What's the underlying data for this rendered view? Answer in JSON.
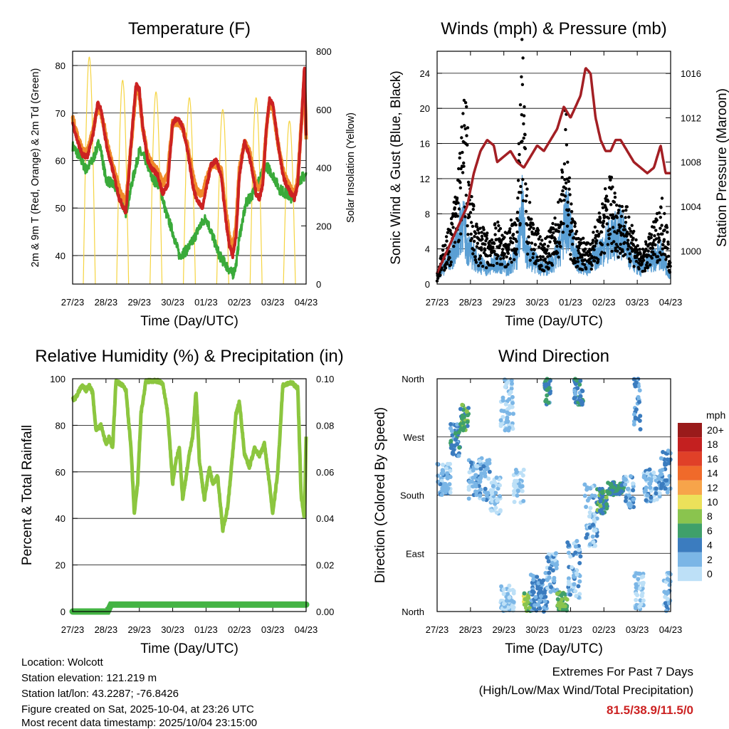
{
  "colors": {
    "temp_red": "#cc2222",
    "temp_orange": "#f08a2a",
    "dew_green": "#3aaa3a",
    "solar_yellow": "#f5d442",
    "wind_blue": "#5a9fd4",
    "gust_black": "#000000",
    "pressure_maroon": "#a31f24",
    "rh_green": "#8cc63f",
    "rain_green": "#44b444",
    "extremes_red": "#cc2222"
  },
  "chart_data": [
    {
      "id": "temperature",
      "type": "line",
      "title": "Temperature (F)",
      "xlabel": "Time (Day/UTC)",
      "ylabel": "2m & 9m T (Red, Orange) & 2m Td (Green)",
      "ylabel_right": "Solar Insolation (Yellow)",
      "x_ticks": [
        "27/23",
        "28/23",
        "29/23",
        "30/23",
        "01/23",
        "02/23",
        "03/23",
        "04/23"
      ],
      "xlim": [
        0,
        7
      ],
      "ylim": [
        34,
        83
      ],
      "y_ticks": [
        40,
        50,
        60,
        70,
        80
      ],
      "ylim_right": [
        0,
        800
      ],
      "y_ticks_right": [
        0,
        200,
        400,
        600,
        800
      ],
      "series": [
        {
          "name": "2m T",
          "color": "#cc2222",
          "x": [
            0,
            0.15,
            0.3,
            0.45,
            0.6,
            0.75,
            0.85,
            0.95,
            1.05,
            1.2,
            1.4,
            1.6,
            1.8,
            1.9,
            2.0,
            2.1,
            2.25,
            2.4,
            2.55,
            2.7,
            2.85,
            3.0,
            3.15,
            3.3,
            3.45,
            3.6,
            3.7,
            3.8,
            3.9,
            4.0,
            4.15,
            4.3,
            4.45,
            4.6,
            4.7,
            4.8,
            4.9,
            5.0,
            5.15,
            5.3,
            5.4,
            5.5,
            5.6,
            5.7,
            5.8,
            5.9,
            6.0,
            6.15,
            6.3,
            6.4,
            6.55,
            6.65,
            6.75,
            6.85,
            6.95,
            7.0
          ],
          "y": [
            68,
            64,
            61,
            61,
            65,
            72,
            71,
            66,
            62,
            58,
            52,
            49,
            68,
            76,
            75,
            67,
            60,
            58,
            57,
            53,
            55,
            68,
            69,
            67,
            62,
            55,
            52,
            51,
            50,
            54,
            59,
            60,
            57,
            47,
            42,
            40,
            44,
            57,
            64,
            61,
            57,
            53,
            52,
            55,
            66,
            73,
            72,
            64,
            57,
            55,
            53,
            52,
            55,
            67,
            80,
            65
          ]
        },
        {
          "name": "9m T",
          "color": "#f08a2a",
          "x": [
            0,
            0.15,
            0.3,
            0.45,
            0.6,
            0.75,
            0.85,
            0.95,
            1.05,
            1.2,
            1.4,
            1.6,
            1.8,
            1.9,
            2.0,
            2.1,
            2.25,
            2.4,
            2.55,
            2.7,
            2.85,
            3.0,
            3.15,
            3.3,
            3.45,
            3.6,
            3.7,
            3.8,
            3.9,
            4.0,
            4.15,
            4.3,
            4.45,
            4.6,
            4.7,
            4.8,
            4.9,
            5.0,
            5.15,
            5.3,
            5.4,
            5.5,
            5.6,
            5.7,
            5.8,
            5.9,
            6.0,
            6.15,
            6.3,
            6.4,
            6.55,
            6.65,
            6.75,
            6.85,
            6.95,
            7.0
          ],
          "y": [
            69,
            65,
            62,
            62,
            66,
            71,
            70,
            67,
            63,
            59,
            54,
            51,
            67,
            75,
            74,
            67,
            61,
            59,
            58,
            55,
            57,
            68,
            68,
            67,
            63,
            57,
            54,
            53,
            53,
            56,
            59,
            59,
            58,
            49,
            44,
            42,
            46,
            58,
            64,
            62,
            58,
            55,
            54,
            56,
            66,
            72,
            71,
            64,
            58,
            56,
            54,
            53,
            56,
            67,
            78,
            65
          ]
        },
        {
          "name": "2m Td",
          "color": "#3aaa3a",
          "x": [
            0,
            0.2,
            0.4,
            0.6,
            0.8,
            1.0,
            1.2,
            1.4,
            1.6,
            1.8,
            2.0,
            2.2,
            2.4,
            2.6,
            2.8,
            3.0,
            3.2,
            3.4,
            3.6,
            3.8,
            4.0,
            4.2,
            4.4,
            4.6,
            4.8,
            4.9,
            5.0,
            5.2,
            5.4,
            5.6,
            5.8,
            6.0,
            6.2,
            6.4,
            6.6,
            6.8,
            7.0
          ],
          "y": [
            63,
            61,
            58,
            60,
            64,
            56,
            55,
            53,
            49,
            56,
            62,
            60,
            56,
            55,
            49,
            45,
            40,
            41,
            43,
            46,
            48,
            44,
            40,
            38,
            36,
            38,
            44,
            51,
            53,
            56,
            59,
            57,
            54,
            53,
            52,
            56,
            57
          ]
        }
      ],
      "solar": {
        "name": "Solar Insolation",
        "color": "#f5d442",
        "peaks": [
          {
            "day": 0.5,
            "value": 780
          },
          {
            "day": 1.5,
            "value": 700
          },
          {
            "day": 2.5,
            "value": 660
          },
          {
            "day": 3.5,
            "value": 640
          },
          {
            "day": 4.5,
            "value": 600
          },
          {
            "day": 5.5,
            "value": 640
          },
          {
            "day": 6.5,
            "value": 560
          }
        ]
      }
    },
    {
      "id": "winds",
      "type": "line",
      "title": "Winds (mph) & Pressure (mb)",
      "xlabel": "Time (Day/UTC)",
      "ylabel": "Sonic Wind & Gust (Blue, Black)",
      "ylabel_right": "Station Pressure (Maroon)",
      "x_ticks": [
        "27/23",
        "28/23",
        "29/23",
        "30/23",
        "01/23",
        "02/23",
        "03/23",
        "04/23"
      ],
      "xlim": [
        0,
        7
      ],
      "ylim": [
        0,
        26.5
      ],
      "y_ticks": [
        0,
        4,
        8,
        12,
        16,
        20,
        24
      ],
      "ylim_right": [
        997,
        1018
      ],
      "y_ticks_right": [
        1000,
        1004,
        1008,
        1012,
        1016
      ],
      "series": [
        {
          "name": "Wind",
          "color": "#5a9fd4",
          "x": [
            0,
            0.3,
            0.6,
            0.75,
            0.9,
            1.2,
            1.5,
            1.8,
            2.1,
            2.4,
            2.55,
            2.7,
            2.9,
            3.2,
            3.5,
            3.7,
            3.9,
            4.2,
            4.5,
            4.8,
            5.0,
            5.2,
            5.5,
            5.8,
            6.1,
            6.4,
            6.7,
            7.0
          ],
          "y": [
            1,
            3,
            5,
            9,
            5,
            3,
            2,
            3,
            2,
            4,
            10,
            4,
            3,
            2,
            3,
            5,
            9,
            3,
            2,
            4,
            5,
            6,
            7,
            4,
            2,
            3,
            4,
            1
          ]
        },
        {
          "name": "Gust",
          "color": "#000000",
          "x": [
            0,
            0.2,
            0.4,
            0.55,
            0.7,
            0.85,
            1.0,
            1.2,
            1.5,
            1.8,
            2.1,
            2.4,
            2.55,
            2.7,
            2.9,
            3.2,
            3.5,
            3.7,
            3.85,
            4.0,
            4.2,
            4.5,
            4.8,
            5.0,
            5.2,
            5.5,
            5.8,
            6.1,
            6.4,
            6.6,
            6.8,
            7.0
          ],
          "y": [
            1,
            4,
            6,
            9,
            14,
            20,
            9,
            6,
            5,
            6,
            5,
            8,
            24,
            9,
            6,
            4,
            6,
            9,
            18,
            8,
            5,
            4,
            6,
            9,
            11,
            8,
            7,
            3,
            5,
            7,
            9,
            2
          ]
        },
        {
          "name": "Pressure",
          "color": "#a31f24",
          "x": [
            0,
            0.3,
            0.6,
            0.9,
            1.1,
            1.3,
            1.5,
            1.7,
            1.8,
            2.0,
            2.2,
            2.4,
            2.6,
            2.8,
            3.0,
            3.2,
            3.4,
            3.6,
            3.8,
            4.0,
            4.15,
            4.3,
            4.45,
            4.6,
            4.75,
            4.9,
            5.05,
            5.2,
            5.35,
            5.5,
            5.7,
            5.9,
            6.1,
            6.3,
            6.5,
            6.7,
            6.85,
            7.0
          ],
          "y": [
            998,
            1000,
            1002,
            1004,
            1007,
            1009,
            1010,
            1009.5,
            1008,
            1008.5,
            1009,
            1008,
            1007.5,
            1008.5,
            1009.5,
            1009,
            1010,
            1011,
            1013,
            1012,
            1013,
            1014,
            1016.5,
            1016,
            1012,
            1010,
            1009,
            1009,
            1010,
            1010,
            1009,
            1008,
            1007.5,
            1007,
            1007.5,
            1009.5,
            1007,
            1007
          ]
        }
      ]
    },
    {
      "id": "humidity",
      "type": "line",
      "title": "Relative Humidity (%) & Precipitation (in)",
      "xlabel": "Time (Day/UTC)",
      "ylabel": "Percent & Total Rainfall",
      "x_ticks": [
        "27/23",
        "28/23",
        "29/23",
        "30/23",
        "01/23",
        "02/23",
        "03/23",
        "04/23"
      ],
      "xlim": [
        0,
        7
      ],
      "ylim": [
        0,
        100
      ],
      "y_ticks": [
        0,
        20,
        40,
        60,
        80,
        100
      ],
      "ylim_right": [
        0,
        0.1
      ],
      "y_ticks_right": [
        "0.00",
        "0.02",
        "0.04",
        "0.06",
        "0.08",
        "0.10"
      ],
      "series": [
        {
          "name": "RH",
          "color": "#8cc63f",
          "x": [
            0,
            0.1,
            0.2,
            0.3,
            0.4,
            0.5,
            0.6,
            0.7,
            0.85,
            1.0,
            1.1,
            1.2,
            1.3,
            1.4,
            1.5,
            1.6,
            1.75,
            1.85,
            1.95,
            2.05,
            2.2,
            2.4,
            2.55,
            2.7,
            2.85,
            3.0,
            3.1,
            3.2,
            3.3,
            3.5,
            3.6,
            3.7,
            3.8,
            3.95,
            4.1,
            4.2,
            4.35,
            4.5,
            4.65,
            4.8,
            4.9,
            5.0,
            5.15,
            5.3,
            5.45,
            5.6,
            5.75,
            5.9,
            6.0,
            6.15,
            6.3,
            6.45,
            6.6,
            6.75,
            6.85,
            6.95,
            7.0
          ],
          "y": [
            91,
            92,
            95,
            97,
            95,
            97,
            94,
            78,
            80,
            72,
            75,
            70,
            99,
            98,
            97,
            95,
            70,
            42,
            55,
            85,
            99,
            99,
            99,
            98,
            85,
            55,
            65,
            70,
            48,
            68,
            75,
            95,
            65,
            48,
            62,
            55,
            58,
            35,
            45,
            68,
            85,
            90,
            68,
            62,
            70,
            67,
            72,
            55,
            42,
            60,
            97,
            98,
            98,
            96,
            50,
            40,
            75
          ]
        },
        {
          "name": "Rainfall",
          "color": "#44b444",
          "x": [
            0,
            1.05,
            1.15,
            7
          ],
          "y": [
            0,
            0,
            0.003,
            0.003
          ]
        }
      ]
    },
    {
      "id": "direction",
      "type": "scatter",
      "title": "Wind Direction",
      "xlabel": "Time (Day/UTC)",
      "ylabel": "Direction (Colored By Speed)",
      "x_ticks": [
        "27/23",
        "28/23",
        "29/23",
        "30/23",
        "01/23",
        "02/23",
        "03/23",
        "04/23"
      ],
      "xlim": [
        0,
        7
      ],
      "y_ticks": [
        "North",
        "East",
        "South",
        "West",
        "North"
      ],
      "ylim": [
        0,
        360
      ],
      "legend_title": "mph",
      "legend_position": "right",
      "legend": [
        {
          "label": "20+",
          "color": "#9a1b1b"
        },
        {
          "label": "18",
          "color": "#c42020"
        },
        {
          "label": "16",
          "color": "#e04028"
        },
        {
          "label": "14",
          "color": "#f06a2a"
        },
        {
          "label": "12",
          "color": "#f7a44a"
        },
        {
          "label": "10",
          "color": "#ece15a"
        },
        {
          "label": "8",
          "color": "#8ac44e"
        },
        {
          "label": "6",
          "color": "#3fa06a"
        },
        {
          "label": "4",
          "color": "#3b7cbf"
        },
        {
          "label": "2",
          "color": "#7bb6e6"
        },
        {
          "label": "0",
          "color": "#bde0f7"
        }
      ],
      "clusters": [
        {
          "x0": 0.0,
          "x1": 0.4,
          "d0": 180,
          "d1": 230,
          "s": 3
        },
        {
          "x0": 0.4,
          "x1": 0.7,
          "d0": 240,
          "d1": 290,
          "s": 5
        },
        {
          "x0": 0.7,
          "x1": 0.95,
          "d0": 280,
          "d1": 320,
          "s": 7
        },
        {
          "x0": 0.95,
          "x1": 1.6,
          "d0": 170,
          "d1": 240,
          "s": 3
        },
        {
          "x0": 1.6,
          "x1": 1.9,
          "d0": 150,
          "d1": 210,
          "s": 2
        },
        {
          "x0": 1.9,
          "x1": 2.3,
          "d0": 0,
          "d1": 40,
          "s": 2
        },
        {
          "x0": 1.9,
          "x1": 2.3,
          "d0": 280,
          "d1": 360,
          "s": 2
        },
        {
          "x0": 2.3,
          "x1": 2.6,
          "d0": 160,
          "d1": 220,
          "s": 2
        },
        {
          "x0": 2.6,
          "x1": 2.8,
          "d0": 0,
          "d1": 30,
          "s": 9
        },
        {
          "x0": 2.8,
          "x1": 3.3,
          "d0": 0,
          "d1": 60,
          "s": 4
        },
        {
          "x0": 3.2,
          "x1": 3.4,
          "d0": 320,
          "d1": 360,
          "s": 5
        },
        {
          "x0": 3.3,
          "x1": 3.6,
          "d0": 30,
          "d1": 90,
          "s": 3
        },
        {
          "x0": 3.6,
          "x1": 3.9,
          "d0": 0,
          "d1": 30,
          "s": 8
        },
        {
          "x0": 3.9,
          "x1": 4.3,
          "d0": 20,
          "d1": 110,
          "s": 3
        },
        {
          "x0": 4.1,
          "x1": 4.4,
          "d0": 320,
          "d1": 360,
          "s": 5
        },
        {
          "x0": 4.4,
          "x1": 4.8,
          "d0": 100,
          "d1": 200,
          "s": 3
        },
        {
          "x0": 4.8,
          "x1": 5.1,
          "d0": 150,
          "d1": 190,
          "s": 7
        },
        {
          "x0": 5.1,
          "x1": 5.6,
          "d0": 180,
          "d1": 200,
          "s": 6
        },
        {
          "x0": 5.6,
          "x1": 5.9,
          "d0": 160,
          "d1": 210,
          "s": 3
        },
        {
          "x0": 5.9,
          "x1": 6.1,
          "d0": 280,
          "d1": 360,
          "s": 4
        },
        {
          "x0": 5.9,
          "x1": 6.2,
          "d0": 0,
          "d1": 60,
          "s": 2
        },
        {
          "x0": 6.2,
          "x1": 6.7,
          "d0": 170,
          "d1": 220,
          "s": 3
        },
        {
          "x0": 6.7,
          "x1": 7.0,
          "d0": 180,
          "d1": 250,
          "s": 4
        },
        {
          "x0": 6.8,
          "x1": 7.0,
          "d0": 0,
          "d1": 60,
          "s": 3
        }
      ]
    }
  ],
  "footer": {
    "location": "Location: Wolcott",
    "elevation": "Station elevation: 121.219 m",
    "latlon": "Station lat/lon: 43.2287; -76.8426",
    "created": "Figure created on Sat, 2025-10-04, at 23:26 UTC",
    "recent": "Most recent data timestamp: 2025/10/04 23:15:00"
  },
  "extremes": {
    "title": "Extremes For Past 7 Days",
    "subtitle": "(High/Low/Max Wind/Total Precipitation)",
    "values": "81.5/38.9/11.5/0"
  }
}
